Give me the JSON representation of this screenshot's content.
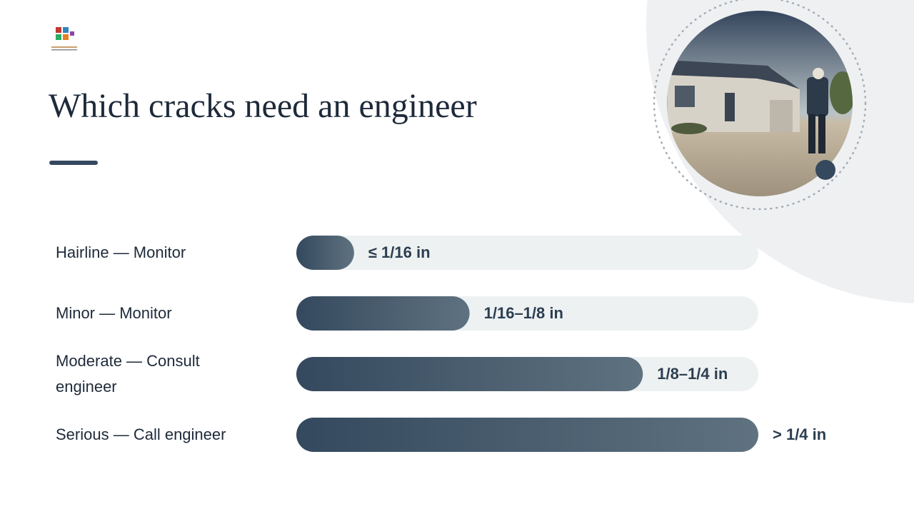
{
  "chart_data": {
    "type": "bar",
    "title": "Which cracks need an engineer",
    "categories": [
      "Hairline — Monitor",
      "Minor — Monitor",
      "Moderate — Consult engineer",
      "Serious — Call engineer"
    ],
    "values": [
      12.5,
      37.5,
      75,
      100
    ],
    "range_labels": [
      "≤ 1/16 in",
      "1/16–1/8 in",
      "1/8–1/4 in",
      "> 1/4 in"
    ],
    "xlim": [
      0,
      100
    ],
    "color": "#34495e"
  }
}
